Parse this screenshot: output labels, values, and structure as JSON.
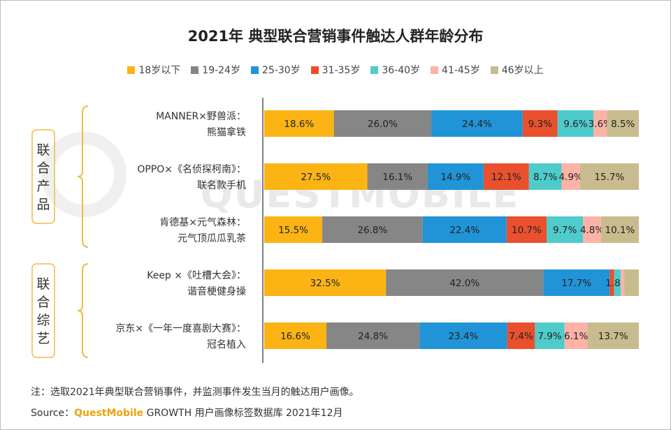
{
  "title": "2021年 典型联合营销事件触达人群年龄分布",
  "watermark": "QUESTMOBILE",
  "groups": [
    {
      "label": "联合产品",
      "rows": [
        0,
        1,
        2
      ]
    },
    {
      "label": "联合综艺",
      "rows": [
        3,
        4
      ]
    }
  ],
  "note": "注：选取2021年典型联合营销事件，并监测事件发生当月的触达用户画像。",
  "source": {
    "prefix": "Source：",
    "brand": "QuestMobile",
    "suffix": "GROWTH 用户画像标签数据库 2021年12月"
  },
  "chart_data": {
    "type": "bar",
    "orientation": "horizontal",
    "stacked": "percent",
    "categories": [
      [
        "MANNER×野兽派：",
        "熊猫拿铁"
      ],
      [
        "OPPO×《名侦探柯南》：",
        "联名款手机"
      ],
      [
        "肯德基×元气森林：",
        "元气顶瓜瓜乳茶"
      ],
      [
        "Keep ×《吐槽大会》：",
        "谐音梗健身操"
      ],
      [
        "京东×《一年一度喜剧大赛》：",
        "冠名植入"
      ]
    ],
    "legend_position": "top",
    "series": [
      {
        "name": "18岁以下",
        "color": "#fbb414",
        "values": [
          18.6,
          27.5,
          15.5,
          32.5,
          16.6
        ]
      },
      {
        "name": "19-24岁",
        "color": "#868686",
        "values": [
          26.0,
          16.1,
          26.8,
          42.0,
          24.8
        ]
      },
      {
        "name": "25-30岁",
        "color": "#2094d6",
        "values": [
          24.4,
          14.9,
          22.4,
          17.7,
          23.4
        ]
      },
      {
        "name": "31-35岁",
        "color": "#e8502e",
        "values": [
          9.3,
          12.1,
          10.7,
          1.2,
          7.4
        ]
      },
      {
        "name": "36-40岁",
        "color": "#4fcbcb",
        "values": [
          9.6,
          8.7,
          9.7,
          1.8,
          7.9
        ]
      },
      {
        "name": "41-45岁",
        "color": "#fcb3a6",
        "values": [
          3.6,
          4.9,
          4.8,
          0.9,
          6.1
        ]
      },
      {
        "name": "46岁以上",
        "color": "#c8bc8f",
        "values": [
          8.5,
          15.7,
          10.1,
          3.9,
          13.7
        ]
      }
    ],
    "data_labels": [
      [
        "18.6%",
        "26.0%",
        "24.4%",
        "9.3%",
        "9.6%",
        "3.6%",
        "8.5%"
      ],
      [
        "27.5%",
        "16.1%",
        "14.9%",
        "12.1%",
        "8.7%",
        "4.9%",
        "15.7%"
      ],
      [
        "15.5%",
        "26.8%",
        "22.4%",
        "10.7%",
        "9.7%",
        "4.8%",
        "10.1%"
      ],
      [
        "32.5%",
        "42.0%",
        "17.7%",
        "",
        "1.8%",
        "",
        ""
      ],
      [
        "16.6%",
        "24.8%",
        "23.4%",
        "7.4%",
        "7.9%",
        "6.1%",
        "13.7%"
      ]
    ]
  }
}
